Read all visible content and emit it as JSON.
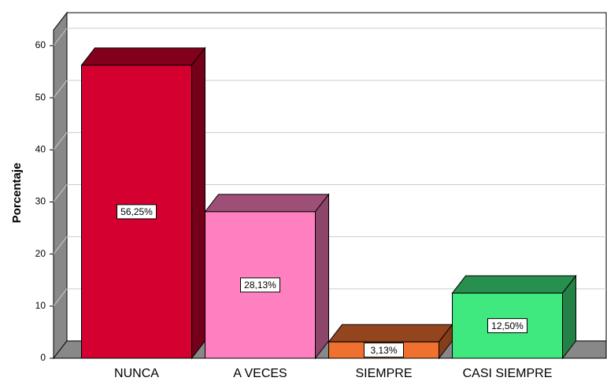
{
  "chart_data": {
    "type": "bar",
    "y_label": "Porcentaje",
    "categories": [
      "NUNCA",
      "A VECES",
      "SIEMPRE",
      "CASI SIEMPRE"
    ],
    "values": [
      56.25,
      28.13,
      3.13,
      12.5
    ],
    "value_labels": [
      "56,25%",
      "28,13%",
      "3,13%",
      "12,50%"
    ],
    "colors": [
      "#d4002f",
      "#ff80c0",
      "#f07030",
      "#40e880"
    ],
    "ylim": [
      0,
      63
    ],
    "yticks": [
      0,
      10,
      20,
      30,
      40,
      50,
      60
    ],
    "grid": true
  }
}
